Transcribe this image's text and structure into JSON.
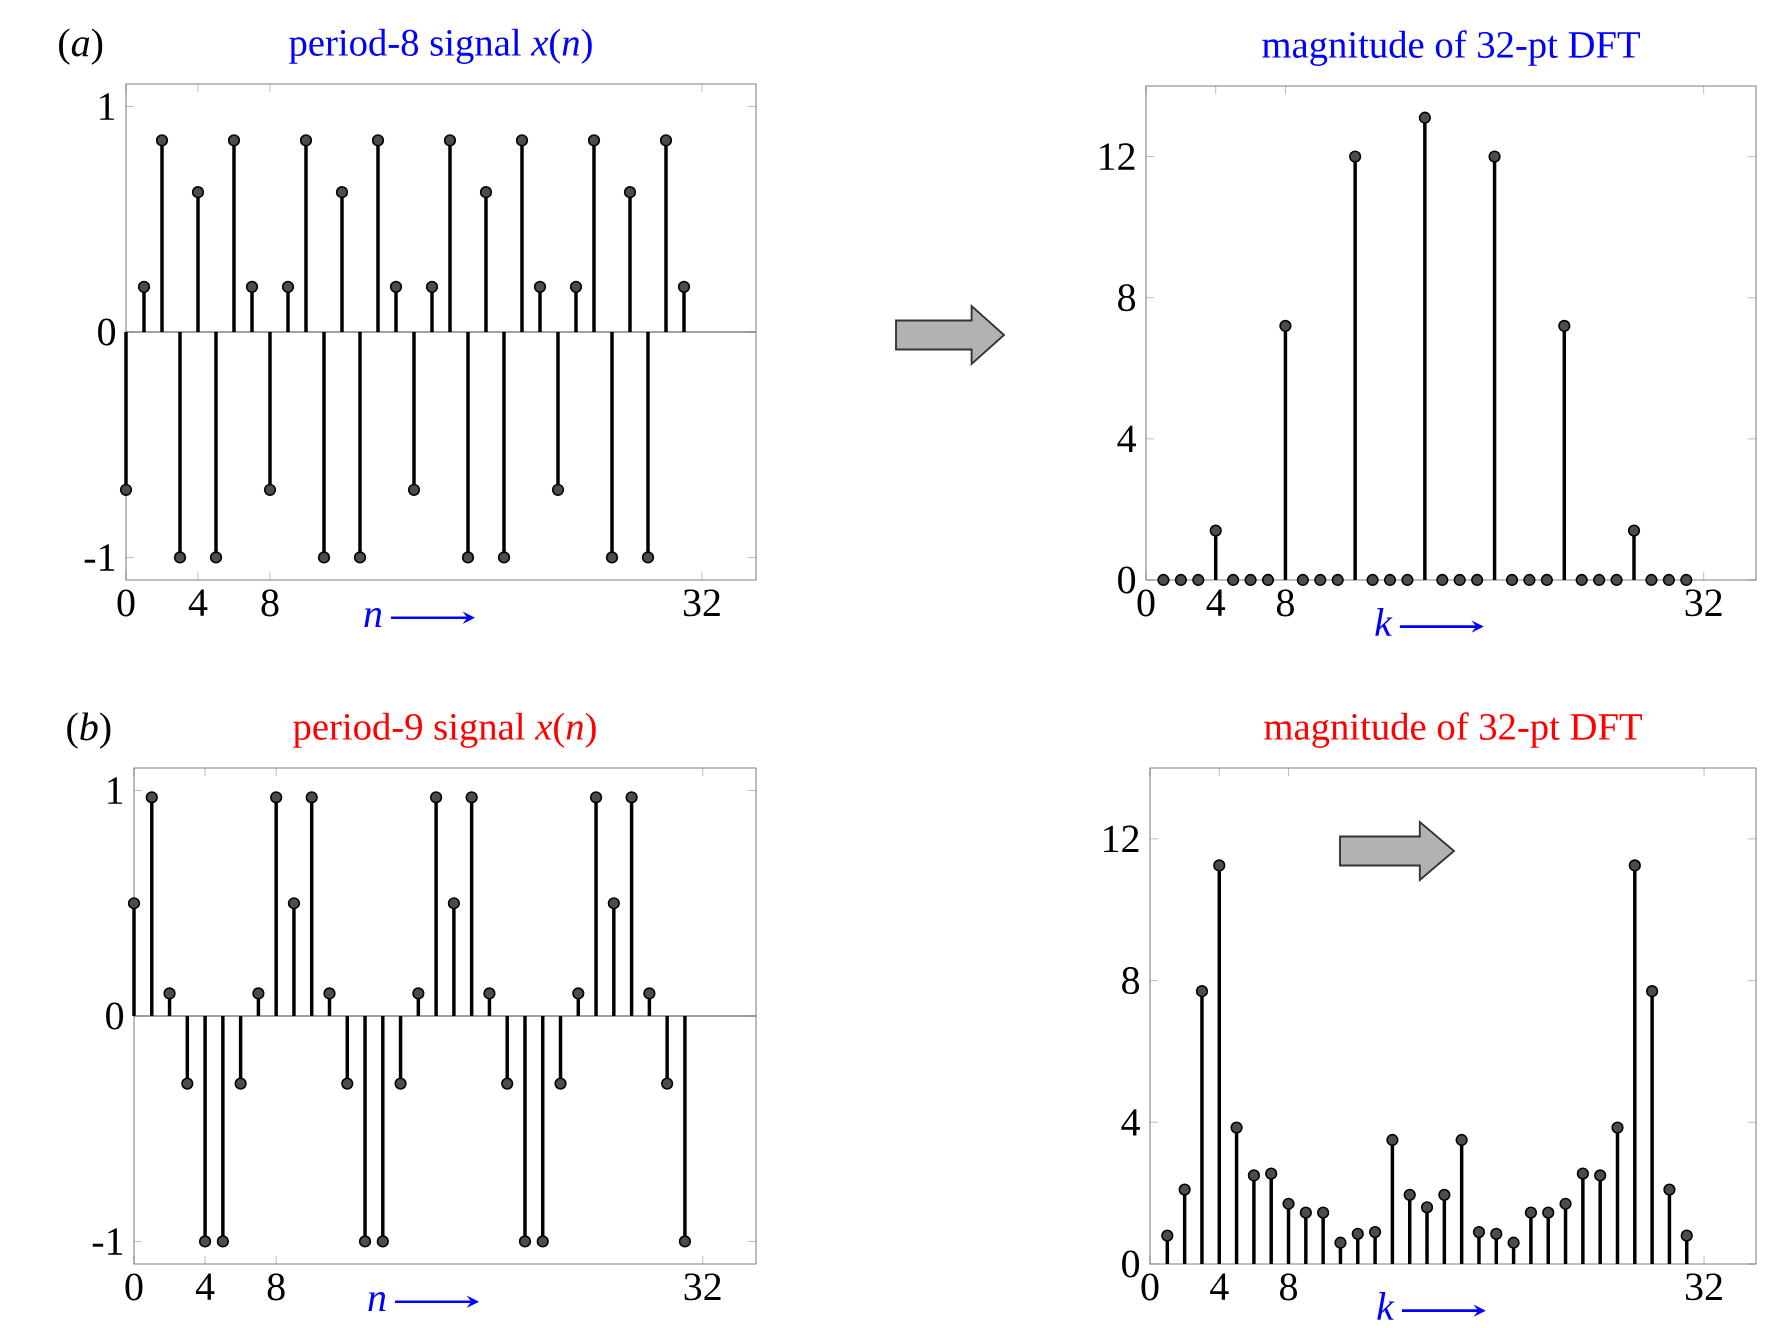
{
  "chart_data": [
    {
      "type": "lollipop",
      "title": "period-8 signal *x*(*n*)",
      "xlabel": "n",
      "annotations": [
        "(*a*)"
      ],
      "marker": "circle",
      "x": [
        0,
        1,
        2,
        3,
        4,
        5,
        6,
        7,
        8,
        9,
        10,
        11,
        12,
        13,
        14,
        15,
        16,
        17,
        18,
        19,
        20,
        21,
        22,
        23,
        24,
        25,
        26,
        27,
        28,
        29,
        30,
        31
      ],
      "series": [
        {
          "color": "#000000",
          "values": [
            -0.7,
            0.2,
            0.85,
            -1,
            0.62,
            -1,
            0.85,
            0.2,
            -0.7,
            0.2,
            0.85,
            -1,
            0.62,
            -1,
            0.85,
            0.2,
            -0.7,
            0.2,
            0.85,
            -1,
            0.62,
            -1,
            0.85,
            0.2,
            -0.7,
            0.2,
            0.85,
            -1,
            0.62,
            -1,
            0.85,
            0.2
          ]
        }
      ],
      "xlim": [
        0,
        35
      ],
      "ylim": [
        -1.1,
        1.1
      ],
      "xticks": [
        0,
        4,
        8,
        32
      ],
      "yticks": [
        -1,
        0,
        1
      ],
      "ref_lines": [
        {
          "axis": "y",
          "value": 0,
          "color": "#808080"
        }
      ]
    },
    {
      "type": "lollipop",
      "title": "magnitude of 32-pt DFT",
      "xlabel": "k",
      "marker": "circle",
      "x": [
        1,
        2,
        3,
        4,
        5,
        6,
        7,
        8,
        9,
        10,
        11,
        12,
        13,
        14,
        15,
        16,
        17,
        18,
        19,
        20,
        21,
        22,
        23,
        24,
        25,
        26,
        27,
        28,
        29,
        30,
        31
      ],
      "series": [
        {
          "color": "#000000",
          "values": [
            0,
            0,
            0,
            1.4,
            0,
            0,
            0,
            7.2,
            0,
            0,
            0,
            12,
            0,
            0,
            0,
            13.1,
            0,
            0,
            0,
            12,
            0,
            0,
            0,
            7.2,
            0,
            0,
            0,
            1.4,
            0,
            0,
            0
          ]
        }
      ],
      "xlim": [
        0,
        35
      ],
      "ylim": [
        0,
        14
      ],
      "xticks": [
        0,
        4,
        8,
        32
      ],
      "yticks": [
        0,
        4,
        8,
        12
      ]
    },
    {
      "type": "lollipop",
      "title": "period-9 signal *x*(*n*)",
      "xlabel": "n",
      "annotations": [
        "(*b*)"
      ],
      "marker": "circle",
      "x": [
        0,
        1,
        2,
        3,
        4,
        5,
        6,
        7,
        8,
        9,
        10,
        11,
        12,
        13,
        14,
        15,
        16,
        17,
        18,
        19,
        20,
        21,
        22,
        23,
        24,
        25,
        26,
        27,
        28,
        29,
        30,
        31
      ],
      "series": [
        {
          "color": "#000000",
          "values": [
            0.5,
            0.97,
            0.1,
            -0.3,
            -1,
            -1,
            -0.3,
            0.1,
            0.97,
            0.5,
            0.97,
            0.1,
            -0.3,
            -1,
            -1,
            -0.3,
            0.1,
            0.97,
            0.5,
            0.97,
            0.1,
            -0.3,
            -1,
            -1,
            -0.3,
            0.1,
            0.97,
            0.5,
            0.97,
            0.1,
            -0.3,
            -1
          ]
        }
      ],
      "xlim": [
        0,
        35
      ],
      "ylim": [
        -1.1,
        1.1
      ],
      "xticks": [
        0,
        4,
        8,
        32
      ],
      "yticks": [
        -1,
        0,
        1
      ],
      "ref_lines": [
        {
          "axis": "y",
          "value": 0,
          "color": "#808080"
        }
      ]
    },
    {
      "type": "lollipop",
      "title": "magnitude of 32-pt DFT",
      "xlabel": "k",
      "marker": "circle",
      "x": [
        1,
        2,
        3,
        4,
        5,
        6,
        7,
        8,
        9,
        10,
        11,
        12,
        13,
        14,
        15,
        16,
        17,
        18,
        19,
        20,
        21,
        22,
        23,
        24,
        25,
        26,
        27,
        28,
        29,
        30,
        31
      ],
      "series": [
        {
          "color": "#000000",
          "values": [
            0.8,
            2.1,
            7.7,
            11.25,
            3.85,
            2.5,
            2.55,
            1.7,
            1.45,
            1.45,
            0.6,
            0.85,
            0.9,
            3.5,
            1.95,
            1.6,
            1.95,
            3.5,
            0.9,
            0.85,
            0.6,
            1.45,
            1.45,
            1.7,
            2.55,
            2.5,
            3.85,
            11.25,
            7.7,
            2.1,
            0.8
          ]
        }
      ],
      "xlim": [
        0,
        35
      ],
      "ylim": [
        0,
        14
      ],
      "xticks": [
        0,
        4,
        8,
        32
      ],
      "yticks": [
        0,
        4,
        8,
        12
      ]
    }
  ]
}
